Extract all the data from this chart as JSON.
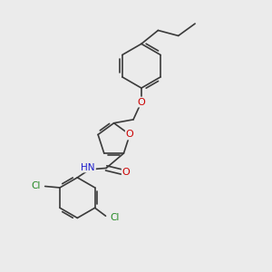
{
  "background_color": "#ebebeb",
  "bond_color": "#3a3a3a",
  "bond_width": 1.2,
  "figsize": [
    3.0,
    3.0
  ],
  "dpi": 100,
  "xlim": [
    0,
    10
  ],
  "ylim": [
    0,
    10
  ]
}
